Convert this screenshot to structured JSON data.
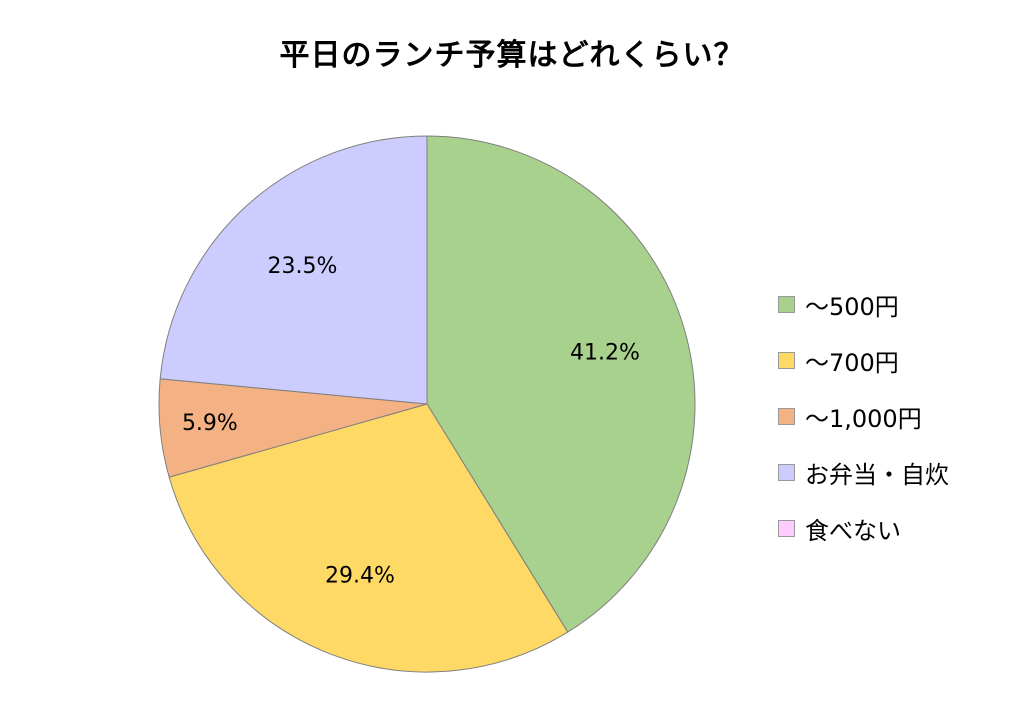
{
  "chart_data": {
    "type": "pie",
    "title": "平日のランチ予算はどれくらい？",
    "categories": [
      "～500円",
      "～700円",
      "～1,000円",
      "お弁当・自炊",
      "食べない"
    ],
    "values": [
      41.2,
      29.4,
      5.9,
      23.5,
      0
    ],
    "data_labels": [
      "41.2%",
      "29.4%",
      "5.9%",
      "23.5%",
      ""
    ],
    "colors": [
      "#a9d18e",
      "#ffd966",
      "#f4b183",
      "#ccccff",
      "#ffccff"
    ],
    "legend_position": "right",
    "start_angle": "top",
    "direction": "clockwise"
  }
}
